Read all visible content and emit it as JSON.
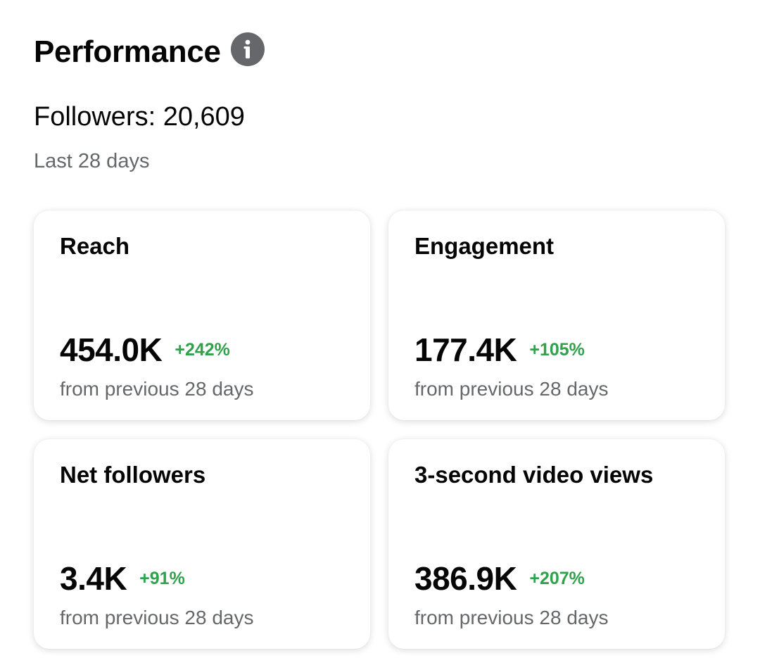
{
  "header": {
    "title": "Performance",
    "info_icon": "info-icon"
  },
  "followers": {
    "label": "Followers: 20,609"
  },
  "period": {
    "label": "Last 28 days"
  },
  "colors": {
    "positive_change": "#31a24c",
    "secondary_text": "#65676b",
    "icon_background": "#65676b"
  },
  "cards": [
    {
      "title": "Reach",
      "value": "454.0K",
      "change": "+242%",
      "subtext": "from previous 28 days"
    },
    {
      "title": "Engagement",
      "value": "177.4K",
      "change": "+105%",
      "subtext": "from previous 28 days"
    },
    {
      "title": "Net followers",
      "value": "3.4K",
      "change": "+91%",
      "subtext": "from previous 28 days"
    },
    {
      "title": "3-second video views",
      "value": "386.9K",
      "change": "+207%",
      "subtext": "from previous 28 days"
    }
  ]
}
